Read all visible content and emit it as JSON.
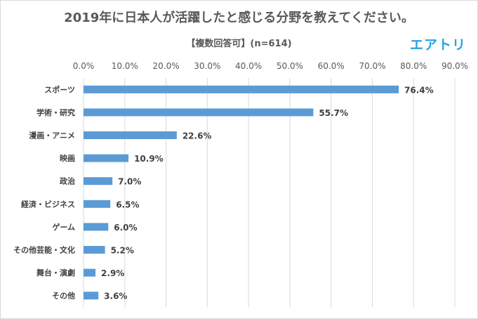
{
  "header": {
    "title": "2019年に日本人が活躍したと感じる分野を教えてください。",
    "subtitle": "【複数回答可】(n=614)",
    "logo_text": "エアトリ"
  },
  "colors": {
    "bar": "#5b9bd5",
    "grid": "#d9d9d9",
    "logo": "#29a3e3"
  },
  "chart_data": {
    "type": "bar",
    "orientation": "horizontal",
    "title": "2019年に日本人が活躍したと感じる分野を教えてください。",
    "subtitle": "【複数回答可】(n=614)",
    "categories": [
      "スポーツ",
      "学術・研究",
      "漫画・アニメ",
      "映画",
      "政治",
      "経済・ビジネス",
      "ゲーム",
      "その他芸能・文化",
      "舞台・演劇",
      "その他"
    ],
    "values": [
      76.4,
      55.7,
      22.6,
      10.9,
      7.0,
      6.5,
      6.0,
      5.2,
      2.9,
      3.6
    ],
    "value_labels": [
      "76.4%",
      "55.7%",
      "22.6%",
      "10.9%",
      "7.0%",
      "6.5%",
      "6.0%",
      "5.2%",
      "2.9%",
      "3.6%"
    ],
    "xlim": [
      0,
      90
    ],
    "ticks": [
      0,
      10,
      20,
      30,
      40,
      50,
      60,
      70,
      80,
      90
    ],
    "tick_labels": [
      "0.0%",
      "10.0%",
      "20.0%",
      "30.0%",
      "40.0%",
      "50.0%",
      "60.0%",
      "70.0%",
      "80.0%",
      "90.0%"
    ],
    "axis_position": "top",
    "grid": true,
    "legend": false
  }
}
